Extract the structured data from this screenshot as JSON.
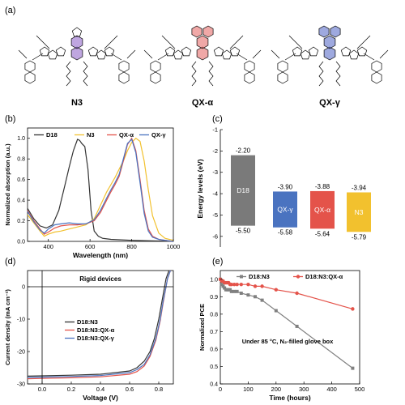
{
  "panels": {
    "a": "(a)",
    "b": "(b)",
    "c": "(c)",
    "d": "(d)",
    "e": "(e)"
  },
  "molecules": [
    {
      "name": "N3",
      "core_color": "#8a5cc7"
    },
    {
      "name": "QX-α",
      "core_color": "#e3605f"
    },
    {
      "name": "QX-γ",
      "core_color": "#4f63c4"
    }
  ],
  "colors": {
    "D18": "#333333",
    "N3": "#f2c12e",
    "QXa": "#e4534a",
    "QXg": "#4a73c0",
    "D18_N3_line": "#888888",
    "D18_N3_QXa_line": "#e4534a"
  },
  "chart_data": [
    {
      "id": "b",
      "type": "line",
      "xlabel": "Wavelength (nm)",
      "ylabel": "Normalized absorption (a.u.)",
      "xlim": [
        300,
        1000
      ],
      "ylim": [
        0,
        1.1
      ],
      "xticks": [
        "400",
        "600",
        "800",
        "1000"
      ],
      "yticks": [
        "0.0",
        "0.2",
        "0.4",
        "0.6",
        "0.8",
        "1.0"
      ],
      "legend": [
        "D18",
        "N3",
        "QX-α",
        "QX-γ"
      ],
      "series": [
        {
          "name": "D18",
          "x": [
            300,
            330,
            360,
            390,
            420,
            450,
            480,
            500,
            520,
            540,
            550,
            560,
            575,
            590,
            605,
            620,
            640,
            660,
            700,
            800,
            1000
          ],
          "y": [
            0.32,
            0.22,
            0.15,
            0.13,
            0.16,
            0.3,
            0.55,
            0.72,
            0.88,
            0.99,
            0.98,
            0.95,
            0.92,
            0.7,
            0.3,
            0.1,
            0.05,
            0.03,
            0.02,
            0.01,
            0.0
          ]
        },
        {
          "name": "N3",
          "x": [
            300,
            330,
            360,
            380,
            400,
            430,
            460,
            500,
            540,
            580,
            620,
            650,
            680,
            700,
            720,
            740,
            760,
            780,
            800,
            820,
            840,
            860,
            880,
            900,
            930,
            960,
            1000
          ],
          "y": [
            0.26,
            0.18,
            0.1,
            0.05,
            0.07,
            0.09,
            0.1,
            0.12,
            0.14,
            0.16,
            0.22,
            0.35,
            0.48,
            0.55,
            0.62,
            0.7,
            0.78,
            0.88,
            0.96,
            1.0,
            0.97,
            0.78,
            0.5,
            0.25,
            0.08,
            0.03,
            0.01
          ]
        },
        {
          "name": "QX-α",
          "x": [
            300,
            330,
            360,
            380,
            400,
            430,
            460,
            500,
            540,
            580,
            620,
            650,
            680,
            700,
            720,
            740,
            760,
            780,
            800,
            820,
            840,
            860,
            880,
            900,
            930,
            960,
            1000
          ],
          "y": [
            0.3,
            0.2,
            0.12,
            0.07,
            0.09,
            0.13,
            0.15,
            0.16,
            0.16,
            0.17,
            0.2,
            0.28,
            0.4,
            0.48,
            0.55,
            0.63,
            0.78,
            0.94,
            1.0,
            0.88,
            0.6,
            0.3,
            0.12,
            0.05,
            0.02,
            0.01,
            0.0
          ]
        },
        {
          "name": "QX-γ",
          "x": [
            300,
            330,
            360,
            380,
            400,
            430,
            460,
            500,
            540,
            580,
            620,
            650,
            680,
            700,
            720,
            740,
            760,
            780,
            800,
            820,
            840,
            860,
            880,
            900,
            930,
            960,
            1000
          ],
          "y": [
            0.29,
            0.19,
            0.11,
            0.08,
            0.12,
            0.16,
            0.17,
            0.18,
            0.17,
            0.17,
            0.21,
            0.3,
            0.42,
            0.5,
            0.57,
            0.65,
            0.8,
            0.95,
            0.99,
            0.86,
            0.57,
            0.27,
            0.1,
            0.04,
            0.02,
            0.01,
            0.0
          ]
        }
      ]
    },
    {
      "id": "c",
      "type": "bar",
      "ylabel": "Energy levels (eV)",
      "ylim": [
        -6.5,
        -1.0
      ],
      "yticks": [
        "-1",
        "-2",
        "-3",
        "-4",
        "-5",
        "-6"
      ],
      "bars": [
        {
          "name": "D18",
          "lumo": -2.2,
          "homo": -5.5,
          "lumo_label": "-2.20",
          "homo_label": "-5.50"
        },
        {
          "name": "QX-γ",
          "lumo": -3.9,
          "homo": -5.58,
          "lumo_label": "-3.90",
          "homo_label": "-5.58"
        },
        {
          "name": "QX-α",
          "lumo": -3.88,
          "homo": -5.64,
          "lumo_label": "-3.88",
          "homo_label": "-5.64"
        },
        {
          "name": "N3",
          "lumo": -3.94,
          "homo": -5.79,
          "lumo_label": "-3.94",
          "homo_label": "-5.79"
        }
      ]
    },
    {
      "id": "d",
      "type": "line",
      "annotation": "Rigid devices",
      "xlabel": "Voltage (V)",
      "ylabel": "Current density (mA cm⁻²)",
      "xlim": [
        -0.1,
        0.9
      ],
      "ylim": [
        -30,
        5
      ],
      "xticks": [
        "0.0",
        "0.2",
        "0.4",
        "0.6",
        "0.8"
      ],
      "yticks": [
        "0",
        "-10",
        "-20",
        "-30"
      ],
      "legend": [
        "D18:N3",
        "D18:N3:QX-α",
        "D18:N3:QX-γ"
      ],
      "series": [
        {
          "name": "D18:N3",
          "x": [
            -0.1,
            0.0,
            0.2,
            0.4,
            0.6,
            0.65,
            0.7,
            0.74,
            0.77,
            0.8,
            0.82,
            0.84,
            0.85,
            0.87
          ],
          "y": [
            -27.6,
            -27.5,
            -27.3,
            -27.0,
            -26.0,
            -25.0,
            -23.0,
            -20.0,
            -16.0,
            -10.0,
            -5.0,
            0.0,
            2.5,
            8.0
          ]
        },
        {
          "name": "D18:N3:QX-α",
          "x": [
            -0.1,
            0.0,
            0.2,
            0.4,
            0.6,
            0.65,
            0.7,
            0.74,
            0.78,
            0.81,
            0.83,
            0.85,
            0.86,
            0.88
          ],
          "y": [
            -28.4,
            -28.3,
            -28.1,
            -27.8,
            -27.0,
            -26.2,
            -24.5,
            -21.5,
            -16.5,
            -10.5,
            -5.0,
            0.0,
            2.5,
            8.0
          ]
        },
        {
          "name": "D18:N3:QX-γ",
          "x": [
            -0.1,
            0.0,
            0.2,
            0.4,
            0.6,
            0.65,
            0.7,
            0.74,
            0.78,
            0.81,
            0.83,
            0.85,
            0.86,
            0.88
          ],
          "y": [
            -28.0,
            -27.9,
            -27.7,
            -27.4,
            -26.5,
            -25.6,
            -24.0,
            -21.0,
            -16.0,
            -10.0,
            -4.5,
            0.0,
            2.5,
            8.0
          ]
        }
      ]
    },
    {
      "id": "e",
      "type": "line",
      "annotation": "Under 85 °C, N₂-filled glove box",
      "xlabel": "Time (hours)",
      "ylabel": "Normalized PCE",
      "xlim": [
        0,
        500
      ],
      "ylim": [
        0.4,
        1.05
      ],
      "xticks": [
        "0",
        "100",
        "200",
        "300",
        "400",
        "500"
      ],
      "yticks": [
        "0.4",
        "0.5",
        "0.6",
        "0.7",
        "0.8",
        "0.9",
        "1.0"
      ],
      "legend": [
        "D18:N3",
        "D18:N3:QX-α"
      ],
      "series": [
        {
          "name": "D18:N3",
          "x": [
            0,
            5,
            10,
            15,
            20,
            25,
            30,
            35,
            40,
            50,
            60,
            75,
            100,
            125,
            150,
            200,
            275,
            475
          ],
          "y": [
            1.0,
            0.97,
            0.96,
            0.95,
            0.94,
            0.94,
            0.94,
            0.94,
            0.93,
            0.93,
            0.93,
            0.92,
            0.91,
            0.9,
            0.88,
            0.82,
            0.73,
            0.49
          ]
        },
        {
          "name": "D18:N3:QX-α",
          "x": [
            0,
            5,
            10,
            15,
            20,
            25,
            30,
            35,
            40,
            50,
            60,
            75,
            100,
            125,
            150,
            200,
            275,
            475
          ],
          "y": [
            1.0,
            0.99,
            0.99,
            0.98,
            0.98,
            0.98,
            0.98,
            0.97,
            0.97,
            0.97,
            0.97,
            0.97,
            0.97,
            0.96,
            0.96,
            0.94,
            0.92,
            0.83
          ]
        }
      ]
    }
  ]
}
